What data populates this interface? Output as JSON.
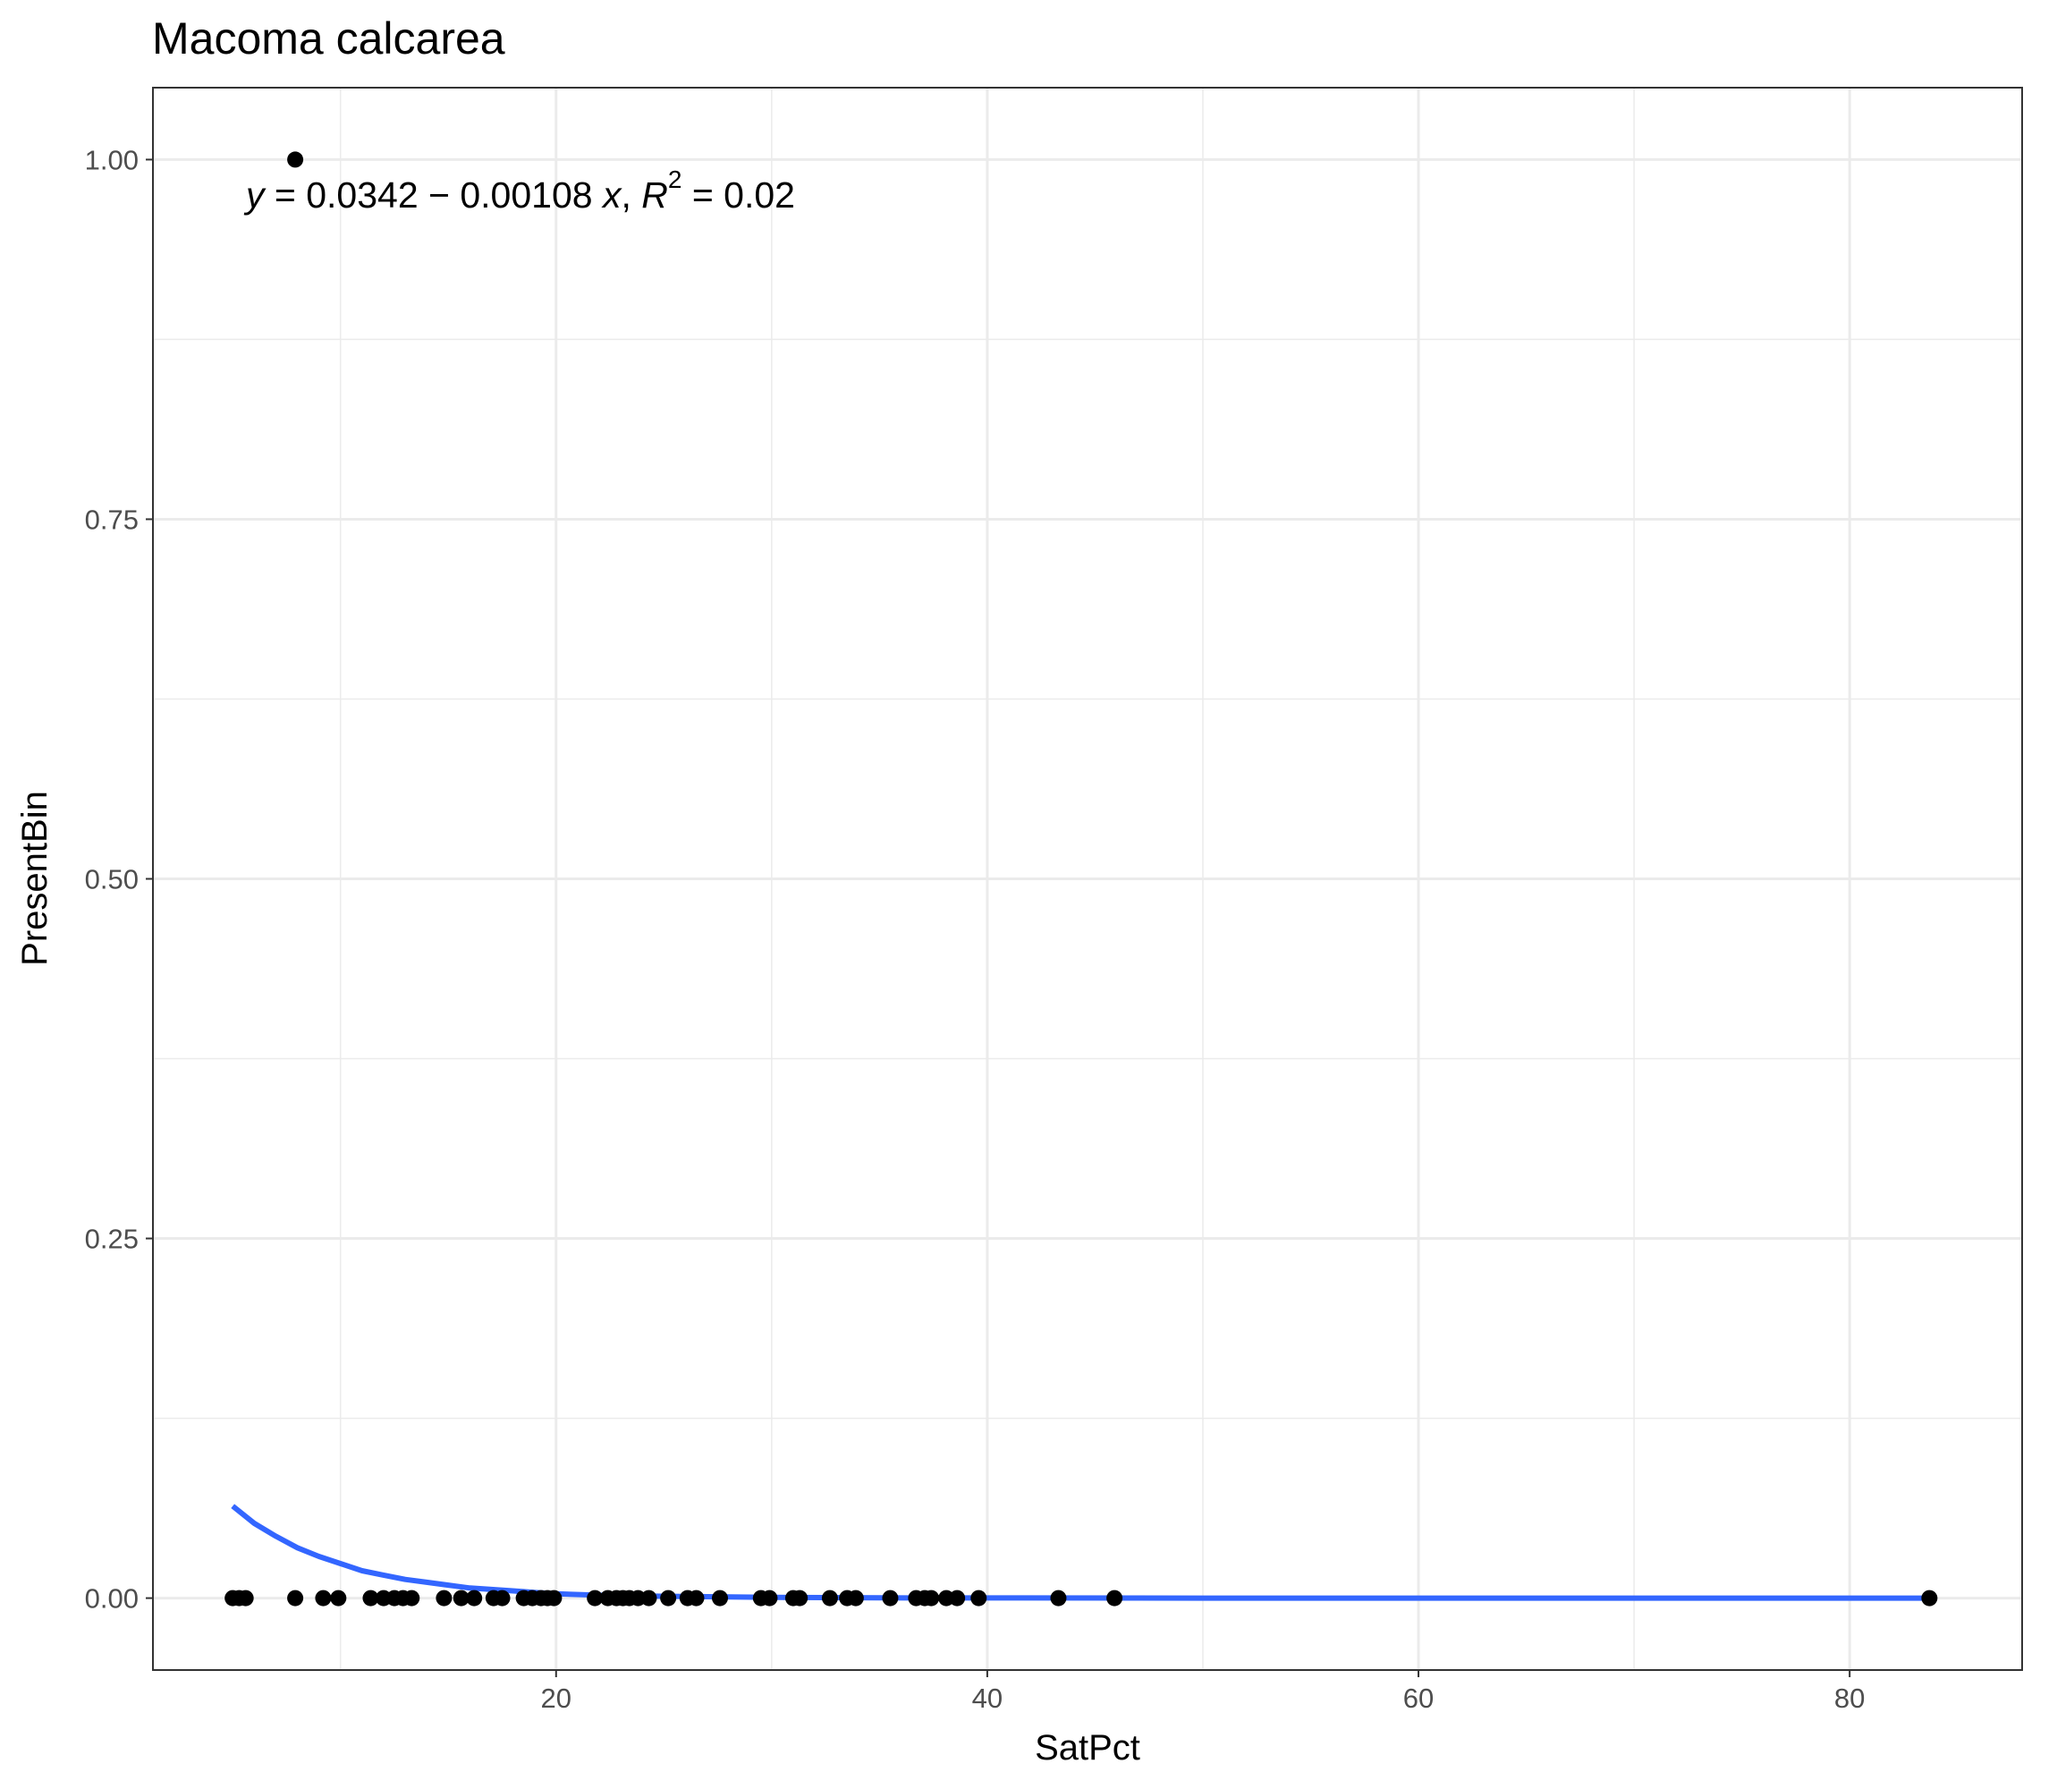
{
  "chart_data": {
    "type": "scatter",
    "title": "Macoma calcarea",
    "xlabel": "SatPct",
    "ylabel": "PresentBin",
    "xlim": [
      1.3,
      88.0
    ],
    "ylim": [
      -0.05,
      1.05
    ],
    "x_ticks": [
      20,
      40,
      60,
      80
    ],
    "x_tick_labels": [
      "20",
      "40",
      "60",
      "80"
    ],
    "x_minor_ticks": [
      10,
      30,
      50,
      70
    ],
    "y_ticks": [
      0,
      0.25,
      0.5,
      0.75,
      1.0
    ],
    "y_tick_labels": [
      "0.00",
      "0.25",
      "0.50",
      "0.75",
      "1.00"
    ],
    "y_minor_ticks": [
      0.125,
      0.375,
      0.625,
      0.875
    ],
    "grid": true,
    "annotation": {
      "equation": "y = 0.0342 − 0.00108 x,  R² = 0.02",
      "y_var": "y",
      "lhs_rest": " = 0.0342 − 0.00108 ",
      "x_var": "x",
      "comma": ", ",
      "r_var": "R",
      "r_exp": "2",
      "rhs": " = 0.02"
    },
    "points": {
      "color": "#000000",
      "values": [
        {
          "x": 7.9,
          "y": 1
        },
        {
          "x": 5.0,
          "y": 0
        },
        {
          "x": 5.3,
          "y": 0
        },
        {
          "x": 5.6,
          "y": 0
        },
        {
          "x": 7.9,
          "y": 0
        },
        {
          "x": 9.2,
          "y": 0
        },
        {
          "x": 9.9,
          "y": 0
        },
        {
          "x": 11.4,
          "y": 0
        },
        {
          "x": 12.0,
          "y": 0
        },
        {
          "x": 12.5,
          "y": 0
        },
        {
          "x": 12.9,
          "y": 0
        },
        {
          "x": 13.3,
          "y": 0
        },
        {
          "x": 14.8,
          "y": 0
        },
        {
          "x": 15.6,
          "y": 0
        },
        {
          "x": 16.2,
          "y": 0
        },
        {
          "x": 17.1,
          "y": 0
        },
        {
          "x": 17.5,
          "y": 0
        },
        {
          "x": 18.5,
          "y": 0
        },
        {
          "x": 18.9,
          "y": 0
        },
        {
          "x": 19.3,
          "y": 0
        },
        {
          "x": 19.6,
          "y": 0
        },
        {
          "x": 19.9,
          "y": 0
        },
        {
          "x": 21.8,
          "y": 0
        },
        {
          "x": 22.4,
          "y": 0
        },
        {
          "x": 22.8,
          "y": 0
        },
        {
          "x": 23.1,
          "y": 0
        },
        {
          "x": 23.4,
          "y": 0
        },
        {
          "x": 23.8,
          "y": 0
        },
        {
          "x": 24.3,
          "y": 0
        },
        {
          "x": 25.2,
          "y": 0
        },
        {
          "x": 26.1,
          "y": 0
        },
        {
          "x": 26.5,
          "y": 0
        },
        {
          "x": 27.6,
          "y": 0
        },
        {
          "x": 29.5,
          "y": 0
        },
        {
          "x": 29.9,
          "y": 0
        },
        {
          "x": 31.0,
          "y": 0
        },
        {
          "x": 31.3,
          "y": 0
        },
        {
          "x": 32.7,
          "y": 0
        },
        {
          "x": 33.5,
          "y": 0
        },
        {
          "x": 33.9,
          "y": 0
        },
        {
          "x": 35.5,
          "y": 0
        },
        {
          "x": 36.7,
          "y": 0
        },
        {
          "x": 37.1,
          "y": 0
        },
        {
          "x": 37.4,
          "y": 0
        },
        {
          "x": 38.1,
          "y": 0
        },
        {
          "x": 38.6,
          "y": 0
        },
        {
          "x": 39.6,
          "y": 0
        },
        {
          "x": 43.3,
          "y": 0
        },
        {
          "x": 45.9,
          "y": 0
        },
        {
          "x": 83.7,
          "y": 0
        }
      ]
    },
    "fit_line": {
      "color": "#3366ff",
      "values": [
        {
          "x": 5.0,
          "y": 0.064
        },
        {
          "x": 6.0,
          "y": 0.052
        },
        {
          "x": 7.0,
          "y": 0.043
        },
        {
          "x": 8.0,
          "y": 0.035
        },
        {
          "x": 9.0,
          "y": 0.029
        },
        {
          "x": 10.0,
          "y": 0.024
        },
        {
          "x": 11.0,
          "y": 0.019
        },
        {
          "x": 12.0,
          "y": 0.016
        },
        {
          "x": 13.0,
          "y": 0.013
        },
        {
          "x": 14.0,
          "y": 0.011
        },
        {
          "x": 15.0,
          "y": 0.009
        },
        {
          "x": 16.0,
          "y": 0.007
        },
        {
          "x": 17.0,
          "y": 0.006
        },
        {
          "x": 18.0,
          "y": 0.005
        },
        {
          "x": 19.0,
          "y": 0.004
        },
        {
          "x": 20.0,
          "y": 0.003
        },
        {
          "x": 22.0,
          "y": 0.002
        },
        {
          "x": 24.0,
          "y": 0.0015
        },
        {
          "x": 27.0,
          "y": 0.001
        },
        {
          "x": 30.0,
          "y": 0.0005
        },
        {
          "x": 35.0,
          "y": 0.0002
        },
        {
          "x": 40.0,
          "y": 0.0001
        },
        {
          "x": 50.0,
          "y": 0.0
        },
        {
          "x": 60.0,
          "y": 0.0
        },
        {
          "x": 70.0,
          "y": 0.0
        },
        {
          "x": 83.7,
          "y": 0.0
        }
      ]
    }
  }
}
